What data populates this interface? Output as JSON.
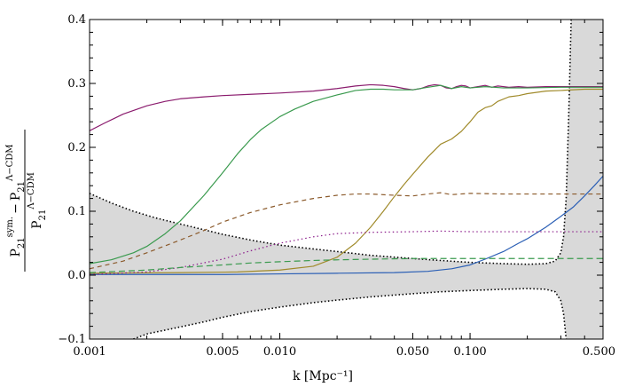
{
  "chart_data": {
    "type": "line",
    "xscale": "log",
    "xlim": [
      0.001,
      0.5
    ],
    "ylim": [
      -0.1,
      0.4
    ],
    "xlabel": "k [Mpc⁻¹]",
    "ylabel": {
      "num_a": "P",
      "num_a_sub": "21",
      "num_a_sup": "sym.",
      "minus": "−",
      "num_b": "P",
      "num_b_sub": "21",
      "num_b_sup": "Λ−CDM",
      "den": "P",
      "den_sub": "21",
      "den_sup": "Λ−CDM"
    },
    "x_ticks": [
      {
        "value": 0.001,
        "label": "0.001"
      },
      {
        "value": 0.005,
        "label": "0.005"
      },
      {
        "value": 0.01,
        "label": "0.010"
      },
      {
        "value": 0.05,
        "label": "0.050"
      },
      {
        "value": 0.1,
        "label": "0.100"
      },
      {
        "value": 0.5,
        "label": "0.500"
      }
    ],
    "y_ticks": [
      {
        "value": -0.1,
        "label": "−0.1"
      },
      {
        "value": 0.0,
        "label": "0.0"
      },
      {
        "value": 0.1,
        "label": "0.1"
      },
      {
        "value": 0.2,
        "label": "0.2"
      },
      {
        "value": 0.3,
        "label": "0.3"
      },
      {
        "value": 0.4,
        "label": "0.4"
      }
    ],
    "grid": false,
    "legend": "none",
    "uncertainty_band": {
      "color": "#d9d9d9",
      "edge_color": "#000000",
      "upper": [
        [
          0.001,
          0.128
        ],
        [
          0.0013,
          0.113
        ],
        [
          0.0017,
          0.1
        ],
        [
          0.0022,
          0.09
        ],
        [
          0.003,
          0.08
        ],
        [
          0.004,
          0.071
        ],
        [
          0.005,
          0.064
        ],
        [
          0.007,
          0.055
        ],
        [
          0.01,
          0.047
        ],
        [
          0.015,
          0.041
        ],
        [
          0.02,
          0.037
        ],
        [
          0.03,
          0.031
        ],
        [
          0.05,
          0.026
        ],
        [
          0.07,
          0.023
        ],
        [
          0.1,
          0.02
        ],
        [
          0.15,
          0.018
        ],
        [
          0.2,
          0.017
        ],
        [
          0.25,
          0.018
        ],
        [
          0.28,
          0.022
        ],
        [
          0.3,
          0.035
        ],
        [
          0.31,
          0.06
        ],
        [
          0.32,
          0.12
        ],
        [
          0.33,
          0.25
        ],
        [
          0.34,
          0.4
        ]
      ],
      "lower": [
        [
          0.0017,
          -0.1
        ],
        [
          0.002,
          -0.092
        ],
        [
          0.003,
          -0.081
        ],
        [
          0.004,
          -0.073
        ],
        [
          0.005,
          -0.066
        ],
        [
          0.007,
          -0.057
        ],
        [
          0.01,
          -0.05
        ],
        [
          0.015,
          -0.043
        ],
        [
          0.02,
          -0.039
        ],
        [
          0.03,
          -0.034
        ],
        [
          0.05,
          -0.029
        ],
        [
          0.07,
          -0.026
        ],
        [
          0.1,
          -0.024
        ],
        [
          0.15,
          -0.022
        ],
        [
          0.2,
          -0.021
        ],
        [
          0.25,
          -0.022
        ],
        [
          0.28,
          -0.026
        ],
        [
          0.3,
          -0.04
        ],
        [
          0.31,
          -0.06
        ],
        [
          0.32,
          -0.1
        ]
      ],
      "right_fill_from": 0.32
    },
    "series": [
      {
        "color": "#8b1c6e",
        "dash": "solid",
        "points": [
          [
            0.001,
            0.226
          ],
          [
            0.0012,
            0.238
          ],
          [
            0.0015,
            0.252
          ],
          [
            0.002,
            0.265
          ],
          [
            0.0025,
            0.272
          ],
          [
            0.003,
            0.276
          ],
          [
            0.004,
            0.279
          ],
          [
            0.005,
            0.281
          ],
          [
            0.007,
            0.283
          ],
          [
            0.01,
            0.285
          ],
          [
            0.015,
            0.288
          ],
          [
            0.02,
            0.292
          ],
          [
            0.025,
            0.296
          ],
          [
            0.03,
            0.298
          ],
          [
            0.035,
            0.297
          ],
          [
            0.04,
            0.295
          ],
          [
            0.045,
            0.292
          ],
          [
            0.05,
            0.29
          ],
          [
            0.055,
            0.292
          ],
          [
            0.06,
            0.296
          ],
          [
            0.065,
            0.298
          ],
          [
            0.07,
            0.297
          ],
          [
            0.075,
            0.293
          ],
          [
            0.08,
            0.292
          ],
          [
            0.085,
            0.295
          ],
          [
            0.09,
            0.297
          ],
          [
            0.095,
            0.296
          ],
          [
            0.1,
            0.293
          ],
          [
            0.11,
            0.295
          ],
          [
            0.12,
            0.297
          ],
          [
            0.13,
            0.294
          ],
          [
            0.14,
            0.296
          ],
          [
            0.16,
            0.294
          ],
          [
            0.18,
            0.295
          ],
          [
            0.2,
            0.294
          ],
          [
            0.25,
            0.295
          ],
          [
            0.3,
            0.295
          ],
          [
            0.4,
            0.295
          ],
          [
            0.5,
            0.295
          ]
        ]
      },
      {
        "color": "#3a9a4e",
        "dash": "solid",
        "points": [
          [
            0.001,
            0.018
          ],
          [
            0.0013,
            0.024
          ],
          [
            0.0017,
            0.035
          ],
          [
            0.002,
            0.045
          ],
          [
            0.0025,
            0.065
          ],
          [
            0.003,
            0.085
          ],
          [
            0.004,
            0.125
          ],
          [
            0.005,
            0.16
          ],
          [
            0.006,
            0.19
          ],
          [
            0.007,
            0.212
          ],
          [
            0.008,
            0.228
          ],
          [
            0.01,
            0.248
          ],
          [
            0.012,
            0.26
          ],
          [
            0.015,
            0.272
          ],
          [
            0.02,
            0.282
          ],
          [
            0.025,
            0.289
          ],
          [
            0.03,
            0.291
          ],
          [
            0.035,
            0.291
          ],
          [
            0.04,
            0.29
          ],
          [
            0.05,
            0.29
          ],
          [
            0.06,
            0.294
          ],
          [
            0.07,
            0.297
          ],
          [
            0.08,
            0.292
          ],
          [
            0.09,
            0.295
          ],
          [
            0.1,
            0.293
          ],
          [
            0.12,
            0.295
          ],
          [
            0.15,
            0.293
          ],
          [
            0.2,
            0.293
          ],
          [
            0.3,
            0.294
          ],
          [
            0.5,
            0.294
          ]
        ]
      },
      {
        "color": "#a08a2a",
        "dash": "solid",
        "points": [
          [
            0.001,
            0.003
          ],
          [
            0.003,
            0.004
          ],
          [
            0.006,
            0.005
          ],
          [
            0.01,
            0.008
          ],
          [
            0.015,
            0.014
          ],
          [
            0.02,
            0.028
          ],
          [
            0.025,
            0.05
          ],
          [
            0.03,
            0.075
          ],
          [
            0.035,
            0.1
          ],
          [
            0.04,
            0.123
          ],
          [
            0.045,
            0.142
          ],
          [
            0.05,
            0.158
          ],
          [
            0.06,
            0.185
          ],
          [
            0.07,
            0.205
          ],
          [
            0.08,
            0.213
          ],
          [
            0.09,
            0.225
          ],
          [
            0.1,
            0.24
          ],
          [
            0.11,
            0.255
          ],
          [
            0.12,
            0.262
          ],
          [
            0.13,
            0.265
          ],
          [
            0.14,
            0.272
          ],
          [
            0.16,
            0.279
          ],
          [
            0.18,
            0.281
          ],
          [
            0.2,
            0.284
          ],
          [
            0.25,
            0.288
          ],
          [
            0.3,
            0.289
          ],
          [
            0.4,
            0.291
          ],
          [
            0.5,
            0.291
          ]
        ]
      },
      {
        "color": "#2b5fb5",
        "dash": "solid",
        "points": [
          [
            0.001,
            0.001
          ],
          [
            0.005,
            0.001
          ],
          [
            0.01,
            0.002
          ],
          [
            0.02,
            0.003
          ],
          [
            0.04,
            0.004
          ],
          [
            0.06,
            0.006
          ],
          [
            0.08,
            0.01
          ],
          [
            0.1,
            0.016
          ],
          [
            0.12,
            0.025
          ],
          [
            0.15,
            0.037
          ],
          [
            0.18,
            0.05
          ],
          [
            0.2,
            0.057
          ],
          [
            0.25,
            0.075
          ],
          [
            0.3,
            0.092
          ],
          [
            0.35,
            0.107
          ],
          [
            0.4,
            0.124
          ],
          [
            0.45,
            0.14
          ],
          [
            0.5,
            0.155
          ]
        ]
      },
      {
        "color": "#8b5a2b",
        "dash": "5,4",
        "points": [
          [
            0.001,
            0.01
          ],
          [
            0.0015,
            0.022
          ],
          [
            0.002,
            0.035
          ],
          [
            0.003,
            0.055
          ],
          [
            0.004,
            0.07
          ],
          [
            0.005,
            0.083
          ],
          [
            0.007,
            0.098
          ],
          [
            0.01,
            0.11
          ],
          [
            0.015,
            0.12
          ],
          [
            0.02,
            0.125
          ],
          [
            0.025,
            0.127
          ],
          [
            0.03,
            0.127
          ],
          [
            0.04,
            0.125
          ],
          [
            0.05,
            0.124
          ],
          [
            0.06,
            0.127
          ],
          [
            0.07,
            0.129
          ],
          [
            0.08,
            0.126
          ],
          [
            0.1,
            0.128
          ],
          [
            0.15,
            0.127
          ],
          [
            0.2,
            0.127
          ],
          [
            0.3,
            0.127
          ],
          [
            0.5,
            0.127
          ]
        ]
      },
      {
        "color": "#8b1c8b",
        "dash": "1.5,3",
        "points": [
          [
            0.001,
            0.001
          ],
          [
            0.002,
            0.005
          ],
          [
            0.003,
            0.012
          ],
          [
            0.005,
            0.025
          ],
          [
            0.007,
            0.038
          ],
          [
            0.01,
            0.05
          ],
          [
            0.015,
            0.06
          ],
          [
            0.02,
            0.065
          ],
          [
            0.03,
            0.067
          ],
          [
            0.05,
            0.068
          ],
          [
            0.07,
            0.069
          ],
          [
            0.1,
            0.068
          ],
          [
            0.2,
            0.068
          ],
          [
            0.3,
            0.068
          ],
          [
            0.5,
            0.068
          ]
        ]
      },
      {
        "color": "#3a9a4e",
        "dash": "7,4",
        "points": [
          [
            0.001,
            0.004
          ],
          [
            0.002,
            0.008
          ],
          [
            0.003,
            0.012
          ],
          [
            0.005,
            0.016
          ],
          [
            0.007,
            0.019
          ],
          [
            0.01,
            0.021
          ],
          [
            0.015,
            0.023
          ],
          [
            0.02,
            0.024
          ],
          [
            0.03,
            0.025
          ],
          [
            0.05,
            0.026
          ],
          [
            0.1,
            0.026
          ],
          [
            0.2,
            0.026
          ],
          [
            0.3,
            0.026
          ],
          [
            0.5,
            0.026
          ]
        ]
      }
    ]
  }
}
